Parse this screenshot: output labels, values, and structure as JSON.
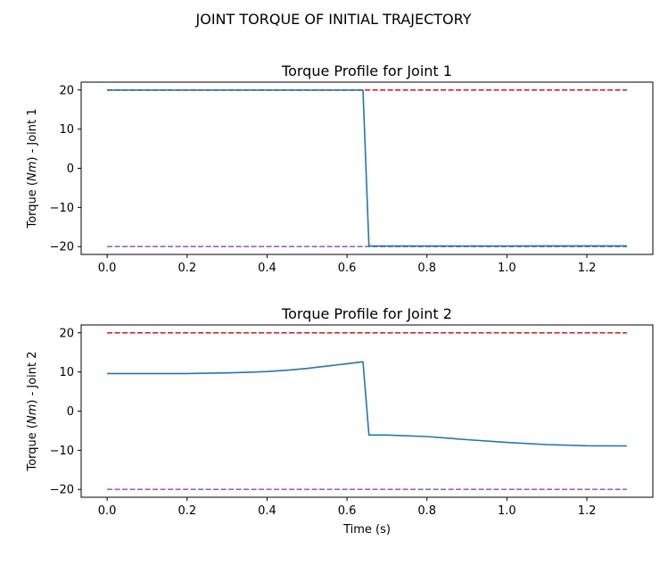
{
  "figure": {
    "suptitle": "JOINT TORQUE OF INITIAL TRAJECTORY"
  },
  "colors": {
    "series": "#1f77b4",
    "upper_limit": "#d62728",
    "lower_limit": "#9467bd"
  },
  "chart_data": [
    {
      "type": "line",
      "title": "Torque Profile for Joint 1",
      "xlabel": "",
      "ylabel_parts": [
        "Torque (",
        "Nm",
        ") - Joint 1"
      ],
      "xlim": [
        -0.065,
        1.365
      ],
      "ylim": [
        -22,
        22
      ],
      "xticks": [
        0.0,
        0.2,
        0.4,
        0.6,
        0.8,
        1.0,
        1.2
      ],
      "xtick_labels": [
        "0.0",
        "0.2",
        "0.4",
        "0.6",
        "0.8",
        "1.0",
        "1.2"
      ],
      "yticks": [
        20,
        10,
        0,
        -10,
        -20
      ],
      "ytick_labels": [
        "20",
        "10",
        "0",
        "−10",
        "−20"
      ],
      "grid": false,
      "series": [
        {
          "role": "torque",
          "x": [
            0.0,
            0.1,
            0.2,
            0.3,
            0.4,
            0.5,
            0.6,
            0.64,
            0.655,
            0.7,
            0.8,
            0.9,
            1.0,
            1.1,
            1.2,
            1.3
          ],
          "y": [
            19.95,
            19.95,
            19.95,
            19.95,
            19.95,
            19.95,
            19.95,
            19.95,
            -19.85,
            -19.85,
            -19.85,
            -19.85,
            -19.85,
            -19.8,
            -19.8,
            -19.8
          ]
        },
        {
          "role": "upper_limit",
          "x": [
            0.0,
            1.3
          ],
          "y": [
            20,
            20
          ]
        },
        {
          "role": "lower_limit",
          "x": [
            0.0,
            1.3
          ],
          "y": [
            -20,
            -20
          ]
        }
      ]
    },
    {
      "type": "line",
      "title": "Torque Profile for Joint 2",
      "xlabel": "Time (s)",
      "ylabel_parts": [
        "Torque (",
        "Nm",
        ") - Joint 2"
      ],
      "xlim": [
        -0.065,
        1.365
      ],
      "ylim": [
        -22,
        22
      ],
      "xticks": [
        0.0,
        0.2,
        0.4,
        0.6,
        0.8,
        1.0,
        1.2
      ],
      "xtick_labels": [
        "0.0",
        "0.2",
        "0.4",
        "0.6",
        "0.8",
        "1.0",
        "1.2"
      ],
      "yticks": [
        20,
        10,
        0,
        -10,
        -20
      ],
      "ytick_labels": [
        "20",
        "10",
        "0",
        "−10",
        "−20"
      ],
      "grid": false,
      "series": [
        {
          "role": "torque",
          "x": [
            0.0,
            0.1,
            0.2,
            0.3,
            0.35,
            0.4,
            0.45,
            0.5,
            0.55,
            0.6,
            0.64,
            0.655,
            0.7,
            0.8,
            0.9,
            1.0,
            1.1,
            1.2,
            1.3
          ],
          "y": [
            9.6,
            9.6,
            9.6,
            9.75,
            9.9,
            10.1,
            10.45,
            10.9,
            11.5,
            12.1,
            12.6,
            -6.1,
            -6.1,
            -6.5,
            -7.3,
            -8.0,
            -8.55,
            -8.85,
            -8.9
          ]
        },
        {
          "role": "upper_limit",
          "x": [
            0.0,
            1.3
          ],
          "y": [
            20,
            20
          ]
        },
        {
          "role": "lower_limit",
          "x": [
            0.0,
            1.3
          ],
          "y": [
            -20,
            -20
          ]
        }
      ]
    }
  ]
}
